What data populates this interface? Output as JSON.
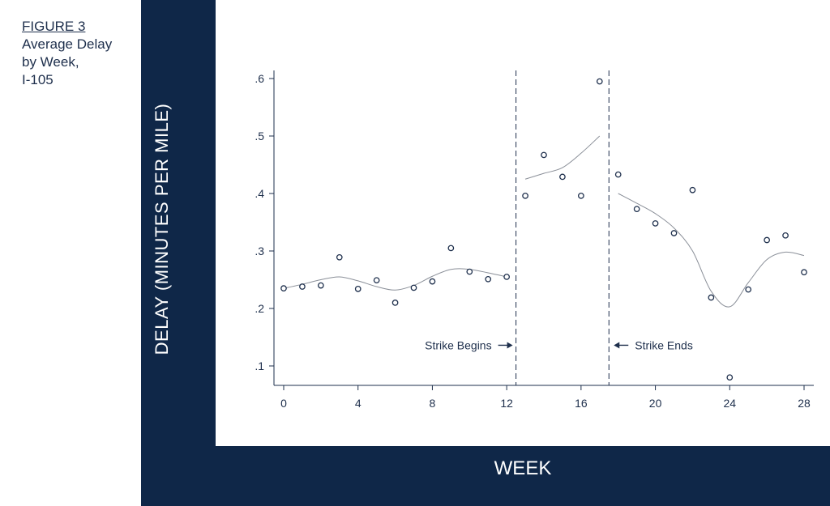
{
  "caption": {
    "figure": "FIGURE 3",
    "title": "Average Delay\nby Week,\nI-105"
  },
  "colors": {
    "frame": "#0f2748",
    "ink": "#1e2f4c",
    "background": "#ffffff"
  },
  "chart_data": {
    "type": "scatter",
    "title": "",
    "xlabel": "WEEK",
    "ylabel": "DELAY (MINUTES PER MILE)",
    "xlim": [
      0,
      28
    ],
    "ylim": [
      0.1,
      0.6
    ],
    "xticks": [
      0,
      4,
      8,
      12,
      16,
      20,
      24,
      28
    ],
    "xtick_labels": [
      "0",
      "4",
      "8",
      "12",
      "16",
      "20",
      "24",
      "28"
    ],
    "yticks": [
      0.1,
      0.2,
      0.3,
      0.4,
      0.5,
      0.6
    ],
    "ytick_labels": [
      ".1",
      ".2",
      ".3",
      ".4",
      ".5",
      ".6"
    ],
    "grid": false,
    "legend": "none",
    "series": [
      {
        "x": [
          0,
          1,
          2,
          3,
          4,
          5,
          6,
          7,
          8,
          9,
          10,
          11,
          12,
          13,
          14,
          15,
          16,
          17,
          18,
          19,
          20,
          21,
          22,
          23,
          24,
          25,
          26,
          27,
          28
        ],
        "y": [
          0.235,
          0.238,
          0.24,
          0.289,
          0.234,
          0.249,
          0.21,
          0.236,
          0.247,
          0.305,
          0.264,
          0.251,
          0.255,
          0.396,
          0.467,
          0.429,
          0.396,
          0.595,
          0.433,
          0.373,
          0.348,
          0.331,
          0.406,
          0.219,
          0.08,
          0.233,
          0.319,
          0.327,
          0.263
        ]
      }
    ],
    "fit_lines": [
      {
        "x": [
          0,
          1,
          2,
          3,
          4,
          5,
          6,
          7,
          8,
          9,
          10,
          11,
          12
        ],
        "y": [
          0.235,
          0.242,
          0.25,
          0.255,
          0.248,
          0.238,
          0.232,
          0.24,
          0.256,
          0.268,
          0.268,
          0.262,
          0.255
        ]
      },
      {
        "x": [
          13,
          14,
          15,
          16,
          17
        ],
        "y": [
          0.425,
          0.435,
          0.445,
          0.47,
          0.5
        ]
      },
      {
        "x": [
          18,
          19,
          20,
          21,
          22,
          23,
          24,
          25,
          26,
          27,
          28
        ],
        "y": [
          0.4,
          0.383,
          0.365,
          0.34,
          0.3,
          0.23,
          0.203,
          0.245,
          0.285,
          0.298,
          0.292
        ]
      }
    ],
    "vlines": [
      {
        "x": 12.5,
        "style": "dashed"
      },
      {
        "x": 17.5,
        "style": "dashed"
      }
    ],
    "annotations": [
      {
        "text": "Strike Begins",
        "x": 12.5,
        "y": 0.136,
        "arrow": "right"
      },
      {
        "text": "Strike Ends",
        "x": 17.5,
        "y": 0.136,
        "arrow": "left"
      }
    ]
  }
}
